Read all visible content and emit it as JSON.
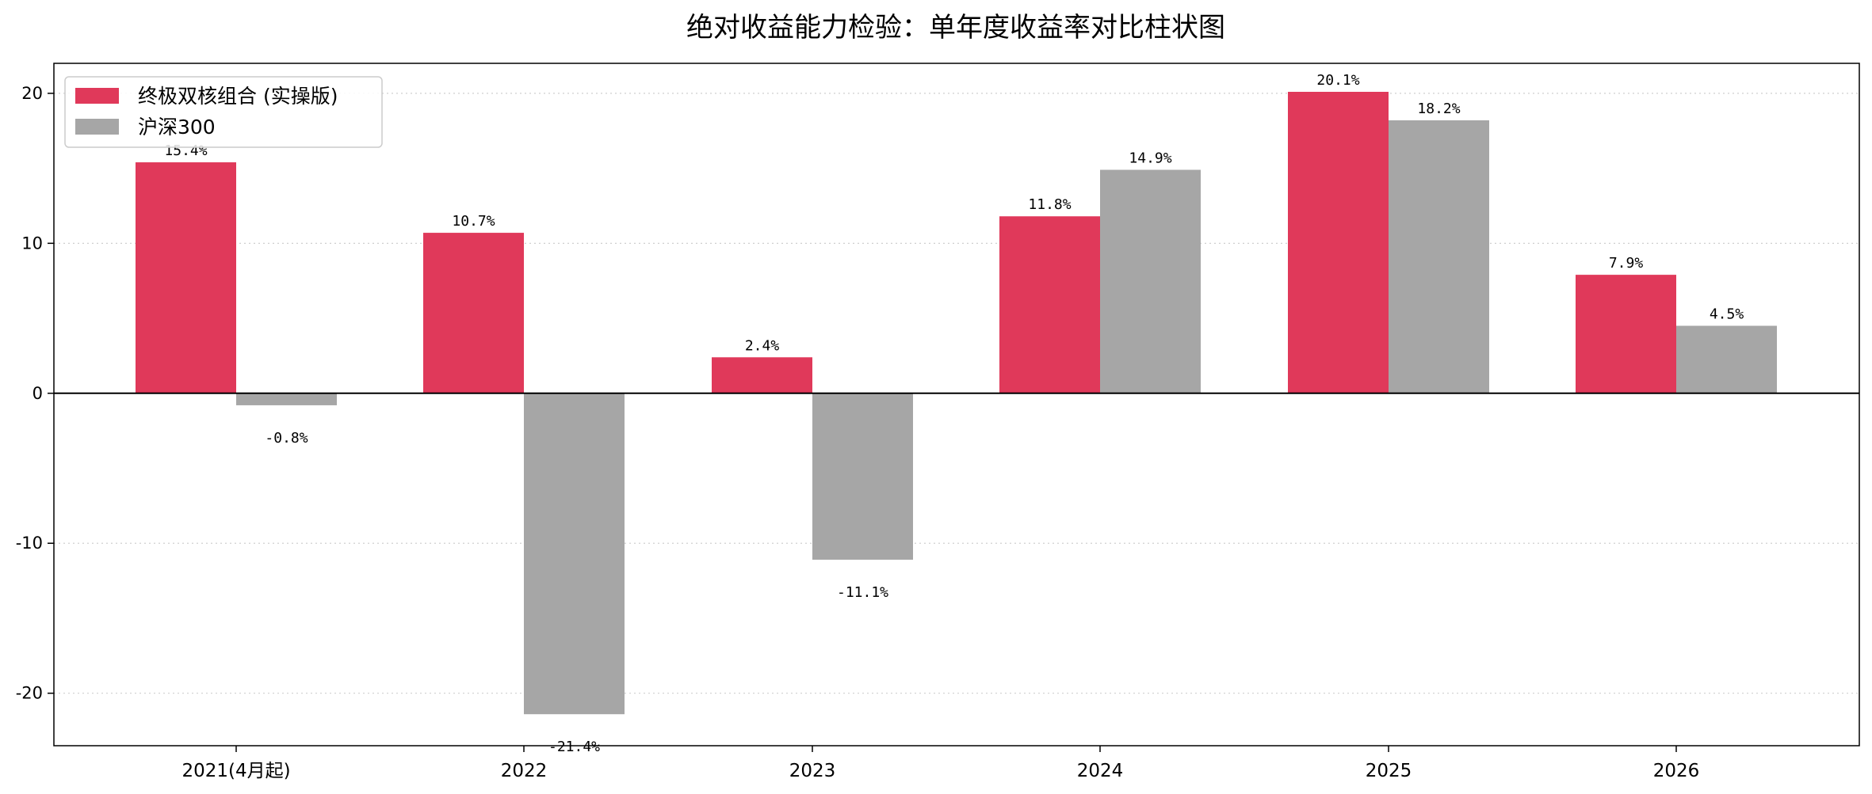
{
  "chart_data": {
    "type": "bar",
    "title": "绝对收益能力检验：单年度收益率对比柱状图",
    "xlabel": "",
    "ylabel": "",
    "categories": [
      "2021(4月起)",
      "2022",
      "2023",
      "2024",
      "2025",
      "2026"
    ],
    "series": [
      {
        "name": "终极双核组合 (实操版)",
        "color": "#E0395A",
        "values": [
          15.4,
          10.7,
          2.4,
          11.8,
          20.1,
          7.9
        ],
        "labels": [
          "15.4%",
          "10.7%",
          "2.4%",
          "11.8%",
          "20.1%",
          "7.9%"
        ]
      },
      {
        "name": "沪深300",
        "color": "#A6A6A6",
        "values": [
          -0.8,
          -21.4,
          -11.1,
          14.9,
          18.2,
          4.5
        ],
        "labels": [
          "-0.8%",
          "-21.4%",
          "-11.1%",
          "14.9%",
          "18.2%",
          "4.5%"
        ]
      }
    ],
    "ylim": [
      -23.5,
      22.0
    ],
    "yticks": [
      20,
      10,
      0,
      -10,
      -20
    ],
    "grid": "horizontal-dotted",
    "legend": "top-left"
  }
}
